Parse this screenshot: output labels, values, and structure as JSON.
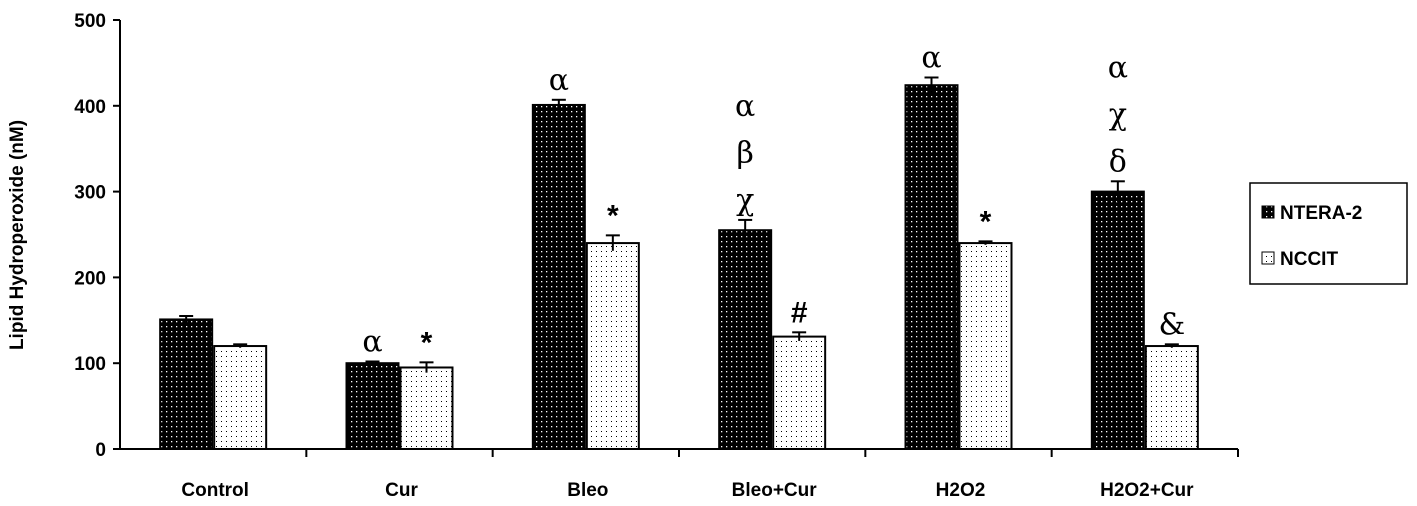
{
  "chart_data": {
    "type": "bar",
    "title": "",
    "xlabel": "",
    "ylabel": "Lipid Hydroperoxide (nM)",
    "ylim": [
      0,
      500
    ],
    "yticks": [
      0,
      100,
      200,
      300,
      400,
      500
    ],
    "categories": [
      "Control",
      "Cur",
      "Bleo",
      "Bleo+Cur",
      "H2O2",
      "H2O2+Cur"
    ],
    "series": [
      {
        "name": "NTERA-2",
        "values": [
          151,
          100,
          401,
          255,
          424,
          300
        ],
        "errors": [
          4,
          2,
          6,
          12,
          9,
          12
        ],
        "annotations": [
          [],
          [
            "α"
          ],
          [
            "α"
          ],
          [
            "α",
            "β",
            "χ"
          ],
          [
            "α"
          ],
          [
            "α",
            "χ",
            "δ"
          ]
        ]
      },
      {
        "name": "NCCIT",
        "values": [
          120,
          95,
          240,
          131,
          240,
          120
        ],
        "errors": [
          2,
          6,
          9,
          5,
          2,
          2
        ],
        "annotations": [
          [],
          [
            "*"
          ],
          [
            "*"
          ],
          [
            "#"
          ],
          [
            "*"
          ],
          [
            "&"
          ]
        ]
      }
    ],
    "grid": false,
    "legend": "right"
  }
}
